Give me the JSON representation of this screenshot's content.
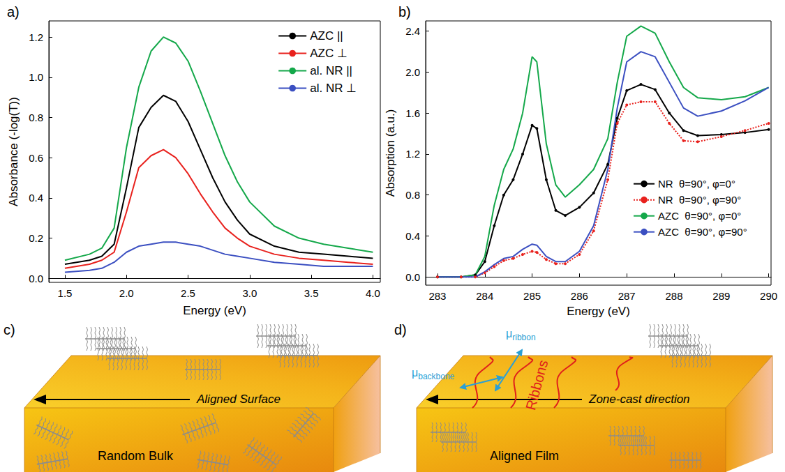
{
  "chart_data": [
    {
      "panel": "a)",
      "type": "line",
      "x_label": "Energy (eV)",
      "y_label": "Absorbance (-log(T))",
      "x": [
        1.5,
        1.7,
        1.8,
        1.9,
        2.0,
        2.1,
        2.2,
        2.3,
        2.4,
        2.5,
        2.6,
        2.7,
        2.8,
        2.9,
        3.0,
        3.2,
        3.4,
        3.6,
        3.8,
        4.0
      ],
      "series": [
        {
          "name": "AZC ||",
          "color": "#000000",
          "marker": "none",
          "line_style": "solid",
          "values": [
            0.07,
            0.09,
            0.11,
            0.17,
            0.45,
            0.75,
            0.85,
            0.91,
            0.88,
            0.78,
            0.64,
            0.5,
            0.38,
            0.29,
            0.22,
            0.16,
            0.13,
            0.12,
            0.11,
            0.1
          ]
        },
        {
          "name": "AZC ⊥",
          "color": "#e8211d",
          "marker": "none",
          "line_style": "solid",
          "values": [
            0.05,
            0.07,
            0.09,
            0.13,
            0.33,
            0.55,
            0.61,
            0.64,
            0.6,
            0.52,
            0.42,
            0.33,
            0.25,
            0.2,
            0.16,
            0.12,
            0.1,
            0.09,
            0.08,
            0.07
          ]
        },
        {
          "name": "al. NR ||",
          "color": "#14a84a",
          "marker": "none",
          "line_style": "solid",
          "values": [
            0.09,
            0.12,
            0.15,
            0.25,
            0.65,
            0.95,
            1.13,
            1.2,
            1.17,
            1.08,
            0.93,
            0.77,
            0.61,
            0.48,
            0.38,
            0.26,
            0.2,
            0.17,
            0.15,
            0.13
          ]
        },
        {
          "name": "al. NR ⊥",
          "color": "#3b4fc1",
          "marker": "none",
          "line_style": "solid",
          "values": [
            0.03,
            0.04,
            0.05,
            0.08,
            0.13,
            0.16,
            0.17,
            0.18,
            0.18,
            0.17,
            0.16,
            0.14,
            0.12,
            0.11,
            0.1,
            0.08,
            0.07,
            0.06,
            0.06,
            0.06
          ]
        }
      ],
      "xlim": [
        1.37,
        4.06
      ],
      "xticks": [
        1.5,
        {
          "value": 2,
          "label": "2.0"
        },
        2.5,
        {
          "value": 3,
          "label": "3.0"
        },
        3.5,
        {
          "value": 4,
          "label": "4.0"
        }
      ],
      "ylim": [
        -0.02,
        1.28
      ],
      "yticks": [
        {
          "value": 0,
          "label": "0.0"
        },
        0.2,
        0.4,
        0.6,
        0.8,
        {
          "value": 1,
          "label": "1.0"
        },
        1.2
      ],
      "legend": "upper right",
      "grid": false
    },
    {
      "panel": "b)",
      "type": "line",
      "x_label": "Energy (eV)",
      "y_label": "Absorption (a.u.)",
      "x": [
        283,
        283.5,
        283.8,
        284.0,
        284.2,
        284.4,
        284.6,
        284.8,
        285.0,
        285.1,
        285.3,
        285.5,
        285.7,
        286.0,
        286.3,
        286.6,
        286.8,
        287.0,
        287.3,
        287.6,
        287.9,
        288.2,
        288.5,
        289.0,
        289.5,
        290.0
      ],
      "series": [
        {
          "name": "NR  θ=90°, φ=0°",
          "color": "#000000",
          "marker": "circle",
          "line_style": "solid",
          "values": [
            0.0,
            0.0,
            0.02,
            0.15,
            0.5,
            0.8,
            0.95,
            1.2,
            1.48,
            1.45,
            0.95,
            0.65,
            0.6,
            0.68,
            0.82,
            1.1,
            1.55,
            1.82,
            1.88,
            1.83,
            1.6,
            1.43,
            1.38,
            1.39,
            1.41,
            1.44
          ]
        },
        {
          "name": "NR  θ=90°, φ=90°",
          "color": "#e8211d",
          "marker": "circle",
          "line_style": "dotted",
          "values": [
            0.0,
            0.0,
            0.0,
            0.04,
            0.1,
            0.16,
            0.18,
            0.22,
            0.25,
            0.24,
            0.17,
            0.13,
            0.13,
            0.22,
            0.45,
            0.95,
            1.5,
            1.68,
            1.71,
            1.71,
            1.5,
            1.33,
            1.32,
            1.37,
            1.43,
            1.5
          ]
        },
        {
          "name": "AZC  θ=90°, φ=0°",
          "color": "#14a84a",
          "marker": "none",
          "line_style": "solid",
          "values": [
            0.0,
            0.0,
            0.02,
            0.2,
            0.7,
            1.05,
            1.25,
            1.6,
            2.15,
            2.1,
            1.3,
            0.9,
            0.78,
            0.9,
            1.05,
            1.35,
            1.9,
            2.35,
            2.45,
            2.38,
            2.1,
            1.85,
            1.75,
            1.73,
            1.76,
            1.85
          ]
        },
        {
          "name": "AZC  θ=90°, φ=90°",
          "color": "#3b4fc1",
          "marker": "none",
          "line_style": "solid",
          "values": [
            0.0,
            0.0,
            0.0,
            0.05,
            0.12,
            0.18,
            0.2,
            0.27,
            0.32,
            0.31,
            0.2,
            0.15,
            0.15,
            0.25,
            0.5,
            1.05,
            1.65,
            2.1,
            2.2,
            2.15,
            1.9,
            1.65,
            1.57,
            1.62,
            1.72,
            1.85
          ]
        }
      ],
      "xlim": [
        282.75,
        290.05
      ],
      "xticks": [
        283,
        284,
        285,
        286,
        287,
        288,
        289,
        290
      ],
      "ylim": [
        -0.08,
        2.5
      ],
      "yticks": [
        {
          "value": 0,
          "label": "0.0"
        },
        0.4,
        0.8,
        1.2,
        1.6,
        {
          "value": 2,
          "label": "2.0"
        },
        2.4
      ],
      "legend": "right",
      "grid": false
    }
  ],
  "diagrams": [
    {
      "panel": "c)",
      "arrow_label": "Aligned Surface",
      "bulk_label": "Random  Bulk"
    },
    {
      "panel": "d)",
      "arrow_label": "Zone-cast direction",
      "film_label": "Aligned Film",
      "ribbon_label": "Ribbons",
      "dipoles": [
        {
          "symbol": "μ",
          "subscript": "backbone"
        },
        {
          "symbol": "μ",
          "subscript": "ribbon"
        }
      ]
    }
  ]
}
